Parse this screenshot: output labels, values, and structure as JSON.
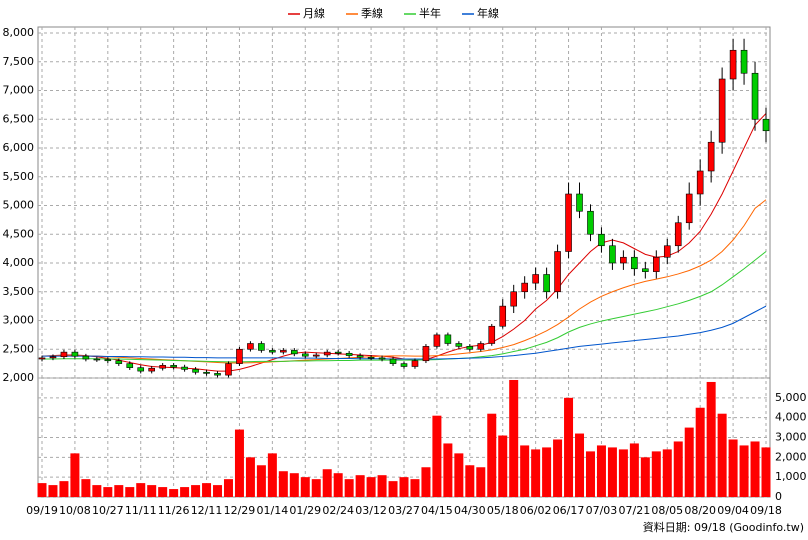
{
  "chart_data": [
    {
      "type": "candlestick",
      "source": "資料日期: 09/18 (Goodinfo.tw)",
      "legend": "top",
      "grid": true,
      "up_color": "#ff0000",
      "down_color": "#00cc00",
      "categories": [
        "09/19",
        null,
        null,
        "10/08",
        null,
        null,
        "10/27",
        null,
        null,
        "11/11",
        null,
        null,
        "11/26",
        null,
        null,
        "12/11",
        null,
        null,
        "12/29",
        null,
        null,
        "01/14",
        null,
        null,
        "01/29",
        null,
        null,
        "02/24",
        null,
        null,
        "03/12",
        null,
        null,
        "03/27",
        null,
        null,
        "04/15",
        null,
        null,
        "04/30",
        null,
        null,
        "05/18",
        null,
        null,
        "06/02",
        null,
        null,
        "06/17",
        null,
        null,
        "07/03",
        null,
        null,
        "07/21",
        null,
        null,
        "08/05",
        null,
        null,
        "08/20",
        null,
        null,
        "09/04",
        null,
        null,
        "09/18"
      ],
      "open": [
        2330,
        2350,
        2370,
        2450,
        2380,
        2330,
        2320,
        2300,
        2250,
        2180,
        2120,
        2170,
        2220,
        2190,
        2150,
        2100,
        2080,
        2050,
        2250,
        2500,
        2600,
        2480,
        2450,
        2480,
        2420,
        2380,
        2400,
        2450,
        2430,
        2390,
        2360,
        2350,
        2330,
        2250,
        2200,
        2300,
        2550,
        2750,
        2600,
        2550,
        2500,
        2600,
        2900,
        3250,
        3500,
        3650,
        3800,
        3500,
        4200,
        5200,
        4900,
        4500,
        4300,
        4000,
        4100,
        3900,
        3850,
        4100,
        4300,
        4700,
        5200,
        5600,
        6100,
        7200,
        7700,
        7300,
        6500
      ],
      "high": [
        2390,
        2410,
        2490,
        2490,
        2420,
        2370,
        2360,
        2340,
        2290,
        2220,
        2210,
        2260,
        2260,
        2230,
        2190,
        2140,
        2120,
        2290,
        2540,
        2640,
        2640,
        2520,
        2520,
        2520,
        2460,
        2440,
        2490,
        2490,
        2470,
        2430,
        2400,
        2390,
        2370,
        2290,
        2340,
        2590,
        2790,
        2790,
        2640,
        2590,
        2640,
        2940,
        3370,
        3620,
        3770,
        3920,
        3920,
        4320,
        5400,
        5400,
        5020,
        4620,
        4420,
        4220,
        4220,
        4020,
        4220,
        4420,
        4820,
        5400,
        5800,
        6300,
        7400,
        7900,
        7900,
        7500,
        6700
      ],
      "low": [
        2290,
        2310,
        2330,
        2340,
        2290,
        2280,
        2260,
        2210,
        2140,
        2080,
        2080,
        2130,
        2150,
        2110,
        2060,
        2040,
        2010,
        2010,
        2210,
        2460,
        2440,
        2410,
        2410,
        2380,
        2340,
        2340,
        2360,
        2390,
        2350,
        2320,
        2310,
        2290,
        2210,
        2160,
        2160,
        2260,
        2510,
        2560,
        2510,
        2460,
        2460,
        2560,
        2860,
        3130,
        3380,
        3530,
        3380,
        3380,
        4080,
        4780,
        4380,
        4180,
        3880,
        3880,
        3780,
        3730,
        3730,
        3980,
        4180,
        4580,
        5000,
        5400,
        5900,
        7000,
        7100,
        6300,
        6100
      ],
      "close": [
        2350,
        2370,
        2450,
        2380,
        2330,
        2320,
        2300,
        2250,
        2180,
        2120,
        2170,
        2220,
        2190,
        2150,
        2100,
        2080,
        2050,
        2250,
        2500,
        2600,
        2480,
        2450,
        2480,
        2420,
        2380,
        2400,
        2450,
        2430,
        2390,
        2360,
        2350,
        2330,
        2250,
        2200,
        2300,
        2550,
        2750,
        2600,
        2550,
        2500,
        2600,
        2900,
        3250,
        3500,
        3650,
        3800,
        3500,
        4200,
        5200,
        4900,
        4500,
        4300,
        4000,
        4100,
        3900,
        3850,
        4100,
        4300,
        4700,
        5200,
        5600,
        6100,
        7200,
        7700,
        7300,
        6500,
        6300
      ],
      "series": [
        {
          "name": "月線",
          "color": "#dd0000",
          "values": [
            2380,
            2390,
            2400,
            2400,
            2390,
            2370,
            2340,
            2310,
            2270,
            2230,
            2200,
            2190,
            2180,
            2170,
            2160,
            2140,
            2120,
            2120,
            2150,
            2200,
            2260,
            2320,
            2380,
            2430,
            2450,
            2440,
            2430,
            2420,
            2410,
            2400,
            2390,
            2380,
            2360,
            2330,
            2310,
            2320,
            2380,
            2450,
            2510,
            2550,
            2570,
            2620,
            2720,
            2850,
            3000,
            3200,
            3350,
            3550,
            3800,
            4000,
            4200,
            4350,
            4400,
            4350,
            4250,
            4150,
            4100,
            4120,
            4200,
            4350,
            4550,
            4850,
            5200,
            5600,
            6000,
            6400,
            6600
          ]
        },
        {
          "name": "季線",
          "color": "#ff6600",
          "values": [
            2380,
            2385,
            2390,
            2390,
            2385,
            2380,
            2370,
            2360,
            2350,
            2340,
            2330,
            2320,
            2310,
            2300,
            2290,
            2280,
            2270,
            2260,
            2260,
            2265,
            2270,
            2280,
            2290,
            2300,
            2310,
            2320,
            2330,
            2340,
            2350,
            2360,
            2370,
            2380,
            2385,
            2385,
            2380,
            2380,
            2390,
            2400,
            2420,
            2440,
            2460,
            2490,
            2530,
            2580,
            2650,
            2730,
            2820,
            2930,
            3060,
            3200,
            3320,
            3420,
            3500,
            3570,
            3630,
            3680,
            3720,
            3760,
            3810,
            3870,
            3950,
            4050,
            4200,
            4400,
            4650,
            4950,
            5100
          ]
        },
        {
          "name": "半年",
          "color": "#33cc33",
          "values": [
            2330,
            2330,
            2335,
            2335,
            2335,
            2335,
            2330,
            2330,
            2325,
            2320,
            2315,
            2310,
            2305,
            2300,
            2295,
            2290,
            2285,
            2280,
            2280,
            2285,
            2290,
            2290,
            2290,
            2295,
            2295,
            2300,
            2300,
            2305,
            2305,
            2310,
            2310,
            2310,
            2310,
            2310,
            2310,
            2315,
            2320,
            2330,
            2340,
            2350,
            2370,
            2390,
            2420,
            2460,
            2500,
            2560,
            2620,
            2700,
            2800,
            2880,
            2940,
            2990,
            3030,
            3070,
            3110,
            3150,
            3190,
            3240,
            3290,
            3350,
            3420,
            3500,
            3620,
            3760,
            3900,
            4050,
            4200
          ]
        },
        {
          "name": "年線",
          "color": "#0055cc",
          "values": [
            2380,
            2380,
            2380,
            2380,
            2380,
            2380,
            2375,
            2375,
            2370,
            2370,
            2365,
            2365,
            2360,
            2360,
            2355,
            2355,
            2350,
            2350,
            2350,
            2350,
            2350,
            2350,
            2350,
            2345,
            2345,
            2345,
            2340,
            2340,
            2340,
            2335,
            2335,
            2335,
            2330,
            2330,
            2330,
            2330,
            2330,
            2335,
            2340,
            2345,
            2350,
            2360,
            2375,
            2390,
            2410,
            2430,
            2460,
            2490,
            2520,
            2550,
            2570,
            2590,
            2610,
            2630,
            2650,
            2670,
            2690,
            2710,
            2730,
            2760,
            2790,
            2830,
            2880,
            2950,
            3050,
            3150,
            3250
          ]
        }
      ],
      "ylim": [
        2000,
        8000
      ],
      "yticks": [
        {
          "value": 2000,
          "label": "2,000"
        },
        {
          "value": 2500,
          "label": "2,500"
        },
        {
          "value": 3000,
          "label": "3,000"
        },
        {
          "value": 3500,
          "label": "3,500"
        },
        {
          "value": 4000,
          "label": "4,000"
        },
        {
          "value": 4500,
          "label": "4,500"
        },
        {
          "value": 5000,
          "label": "5,000"
        },
        {
          "value": 5500,
          "label": "5,500"
        },
        {
          "value": 6000,
          "label": "6,000"
        },
        {
          "value": 6500,
          "label": "6,500"
        },
        {
          "value": 7000,
          "label": "7,000"
        },
        {
          "value": 7500,
          "label": "7,500"
        },
        {
          "value": 8000,
          "label": "8,000"
        }
      ]
    },
    {
      "type": "bar",
      "color": "#ff0000",
      "grid": true,
      "values": [
        700,
        600,
        800,
        2200,
        900,
        600,
        500,
        600,
        500,
        700,
        600,
        500,
        400,
        500,
        600,
        700,
        600,
        900,
        3400,
        2000,
        1600,
        2200,
        1300,
        1200,
        1000,
        900,
        1400,
        1200,
        900,
        1100,
        1000,
        1100,
        800,
        1000,
        900,
        1500,
        4100,
        2700,
        2200,
        1600,
        1500,
        4200,
        3100,
        5900,
        2600,
        2400,
        2500,
        2900,
        5000,
        3200,
        2300,
        2600,
        2500,
        2400,
        2700,
        2000,
        2300,
        2400,
        2800,
        3500,
        4500,
        5800,
        4200,
        2900,
        2600,
        2800,
        2500
      ],
      "ylim": [
        0,
        6000
      ],
      "yticks": [
        0,
        {
          "value": 1000,
          "label": "1,000"
        },
        {
          "value": 2000,
          "label": "2,000"
        },
        {
          "value": 3000,
          "label": "3,000"
        },
        {
          "value": 4000,
          "label": "4,000"
        },
        {
          "value": 5000,
          "label": "5,000"
        }
      ]
    }
  ]
}
